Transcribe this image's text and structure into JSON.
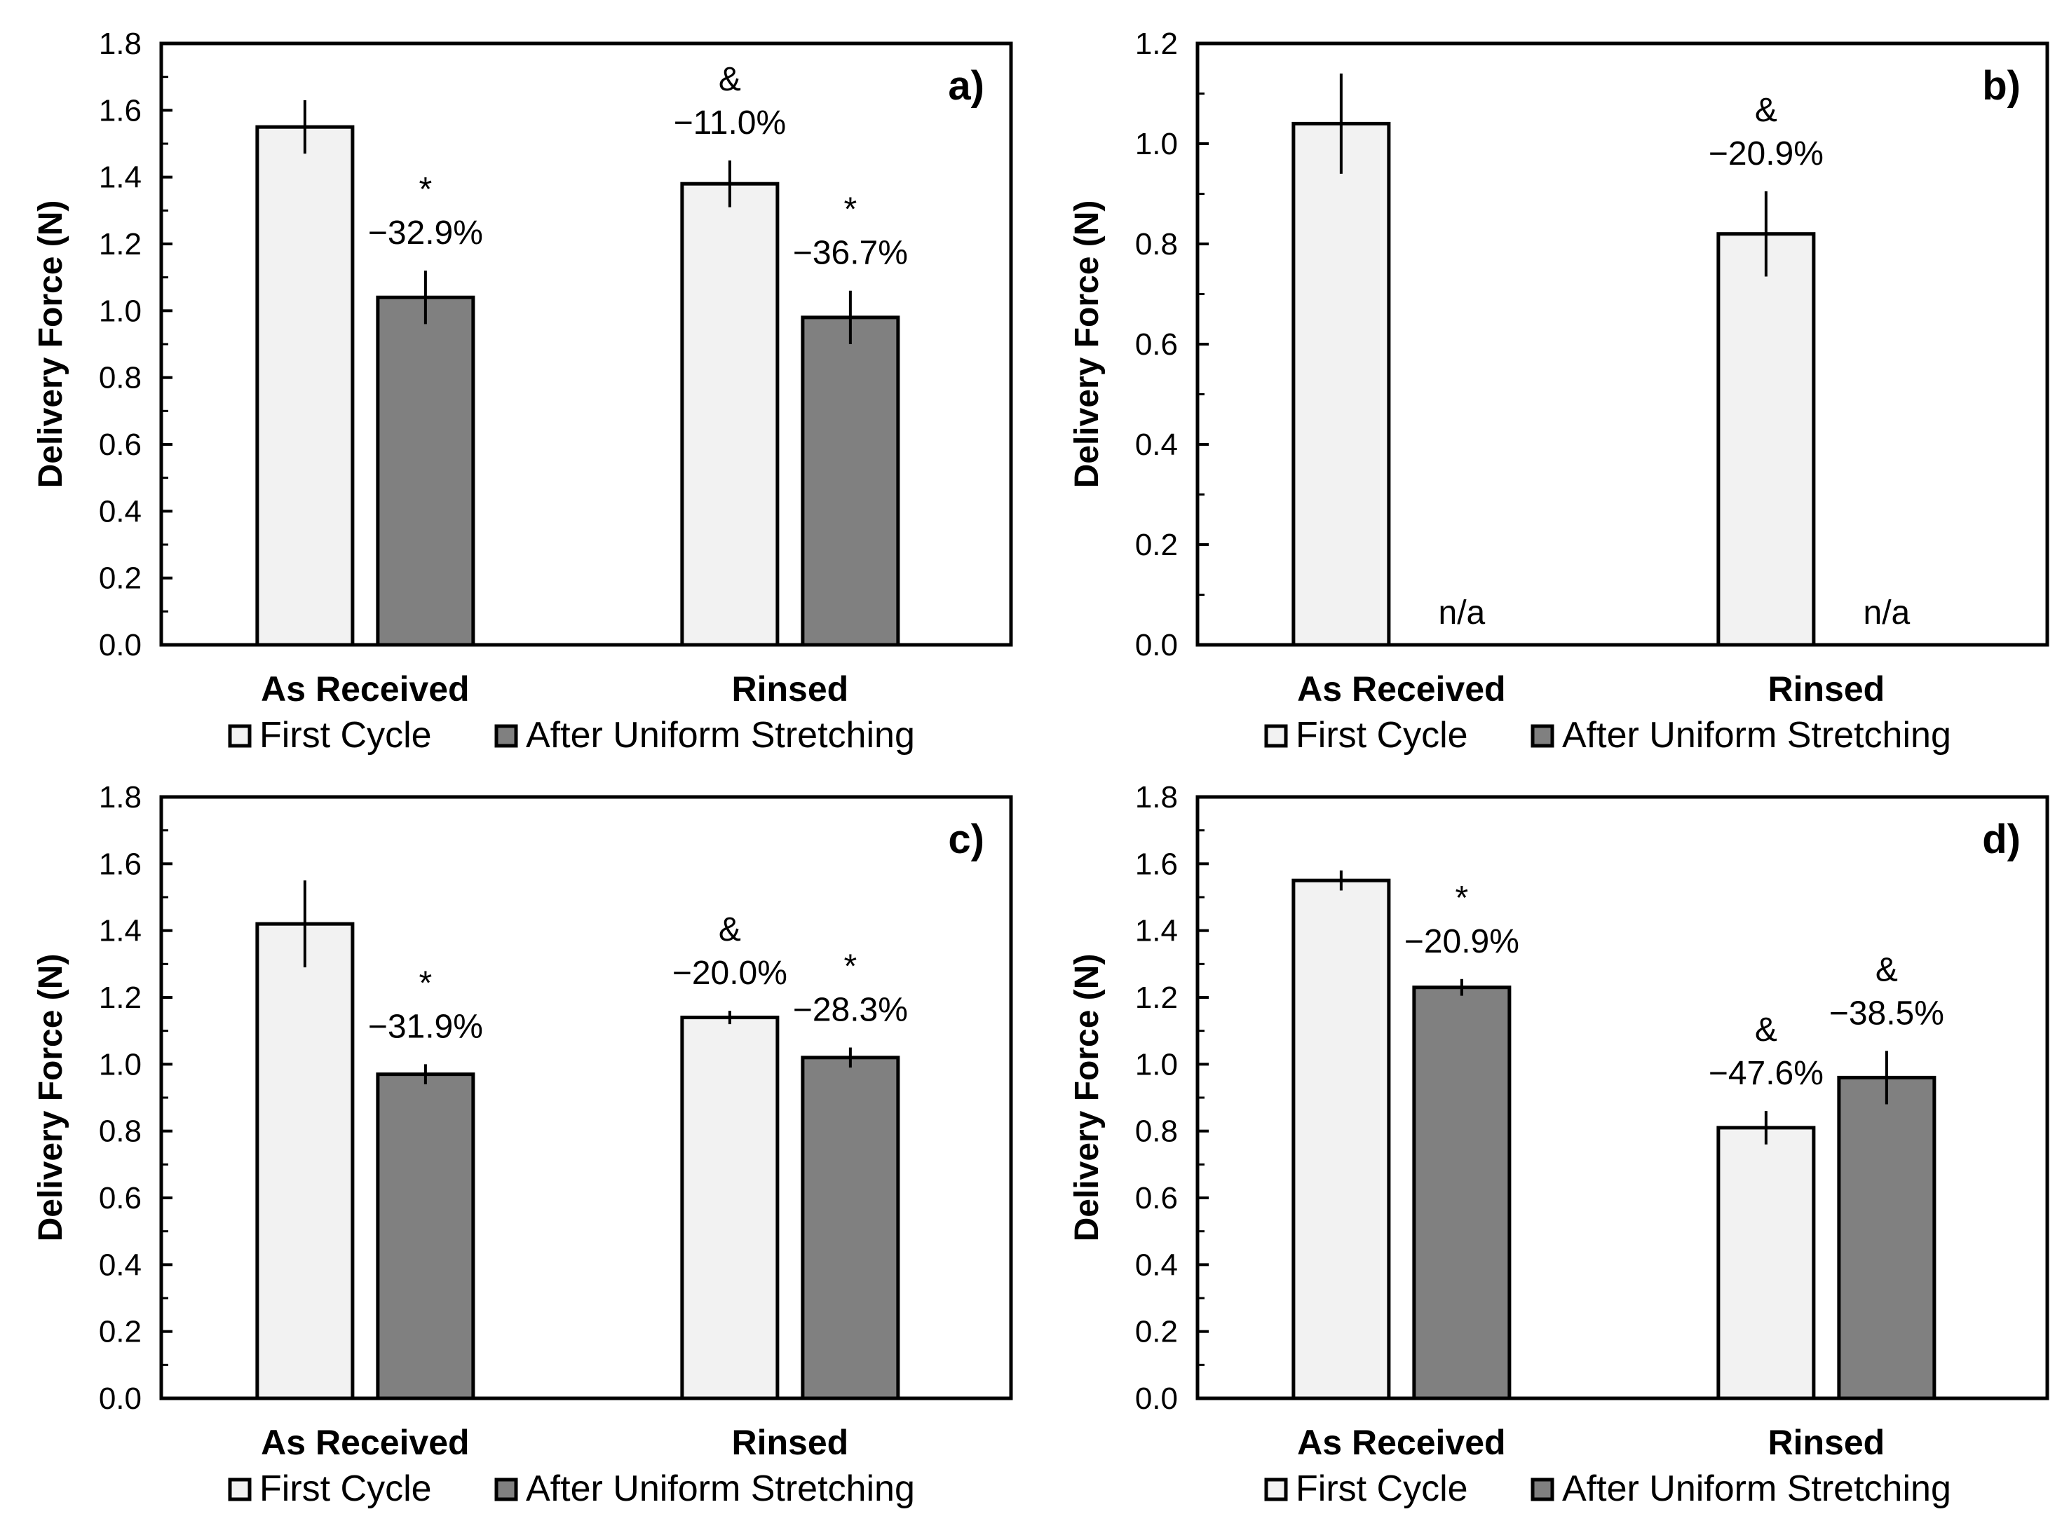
{
  "chart_data": [
    {
      "type": "bar",
      "panel_label": "a)",
      "ylabel": "Delivery Force (N)",
      "ylim": [
        0,
        1.8
      ],
      "ytick_step": 0.2,
      "ytick_labels": [
        "0.0",
        "0.2",
        "0.4",
        "0.6",
        "0.8",
        "1.0",
        "1.2",
        "1.4",
        "1.6",
        "1.8"
      ],
      "grid": false,
      "categories": [
        "As Received",
        "Rinsed"
      ],
      "series": [
        {
          "name": "First Cycle",
          "color": "#f2f2f2",
          "values": [
            1.55,
            1.38
          ],
          "errors": [
            0.08,
            0.07
          ],
          "annotations": [
            null,
            {
              "symbol": "&",
              "text": "−11.0%"
            }
          ]
        },
        {
          "name": "After Uniform Stretching",
          "color": "#808080",
          "values": [
            1.04,
            0.98
          ],
          "errors": [
            0.08,
            0.08
          ],
          "annotations": [
            {
              "symbol": "*",
              "text": "−32.9%"
            },
            {
              "symbol": "*",
              "text": "−36.7%"
            }
          ]
        }
      ],
      "na_labels": [
        null,
        null
      ],
      "legend": [
        "First Cycle",
        "After Uniform Stretching"
      ]
    },
    {
      "type": "bar",
      "panel_label": "b)",
      "ylabel": "Delivery Force (N)",
      "ylim": [
        0,
        1.2
      ],
      "ytick_step": 0.2,
      "ytick_labels": [
        "0.0",
        "0.2",
        "0.4",
        "0.6",
        "0.8",
        "1.0",
        "1.2"
      ],
      "grid": false,
      "categories": [
        "As Received",
        "Rinsed"
      ],
      "series": [
        {
          "name": "First Cycle",
          "color": "#f2f2f2",
          "values": [
            1.04,
            0.82
          ],
          "errors": [
            0.1,
            0.085
          ],
          "annotations": [
            null,
            {
              "symbol": "&",
              "text": "−20.9%"
            }
          ]
        },
        {
          "name": "After Uniform Stretching",
          "color": "#808080",
          "values": [
            null,
            null
          ],
          "errors": [
            null,
            null
          ],
          "annotations": [
            null,
            null
          ]
        }
      ],
      "na_labels": [
        "n/a",
        "n/a"
      ],
      "legend": [
        "First Cycle",
        "After Uniform Stretching"
      ]
    },
    {
      "type": "bar",
      "panel_label": "c)",
      "ylabel": "Delivery Force (N)",
      "ylim": [
        0,
        1.8
      ],
      "ytick_step": 0.2,
      "ytick_labels": [
        "0.0",
        "0.2",
        "0.4",
        "0.6",
        "0.8",
        "1.0",
        "1.2",
        "1.4",
        "1.6",
        "1.8"
      ],
      "grid": false,
      "categories": [
        "As Received",
        "Rinsed"
      ],
      "series": [
        {
          "name": "First Cycle",
          "color": "#f2f2f2",
          "values": [
            1.42,
            1.14
          ],
          "errors": [
            0.13,
            0.02
          ],
          "annotations": [
            null,
            {
              "symbol": "&",
              "text": "−20.0%"
            }
          ]
        },
        {
          "name": "After Uniform Stretching",
          "color": "#808080",
          "values": [
            0.97,
            1.02
          ],
          "errors": [
            0.03,
            0.03
          ],
          "annotations": [
            {
              "symbol": "*",
              "text": "−31.9%"
            },
            {
              "symbol": "*",
              "text": "−28.3%"
            }
          ]
        }
      ],
      "na_labels": [
        null,
        null
      ],
      "legend": [
        "First Cycle",
        "After Uniform Stretching"
      ]
    },
    {
      "type": "bar",
      "panel_label": "d)",
      "ylabel": "Delivery Force (N)",
      "ylim": [
        0,
        1.8
      ],
      "ytick_step": 0.2,
      "ytick_labels": [
        "0.0",
        "0.2",
        "0.4",
        "0.6",
        "0.8",
        "1.0",
        "1.2",
        "1.4",
        "1.6",
        "1.8"
      ],
      "grid": false,
      "categories": [
        "As Received",
        "Rinsed"
      ],
      "series": [
        {
          "name": "First Cycle",
          "color": "#f2f2f2",
          "values": [
            1.55,
            0.81
          ],
          "errors": [
            0.03,
            0.05
          ],
          "annotations": [
            null,
            {
              "symbol": "&",
              "text": "−47.6%"
            }
          ]
        },
        {
          "name": "After Uniform Stretching",
          "color": "#808080",
          "values": [
            1.23,
            0.96
          ],
          "errors": [
            0.025,
            0.08
          ],
          "annotations": [
            {
              "symbol": "*",
              "text": "−20.9%"
            },
            {
              "symbol": "&",
              "text": "−38.5%"
            }
          ]
        }
      ],
      "na_labels": [
        null,
        null
      ],
      "legend": [
        "First Cycle",
        "After Uniform Stretching"
      ]
    }
  ]
}
